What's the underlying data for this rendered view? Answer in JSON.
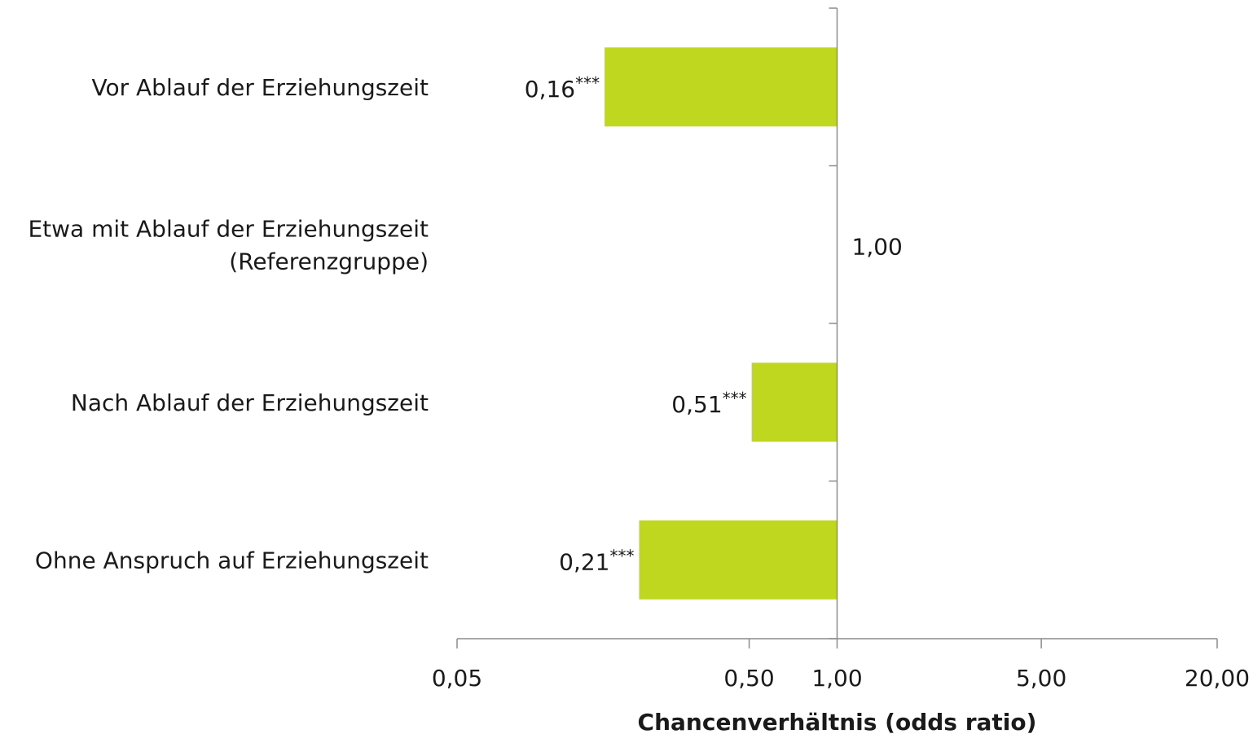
{
  "chart_data": {
    "type": "bar",
    "orientation": "horizontal",
    "xscale": "log",
    "baseline": 1.0,
    "xlim": [
      0.05,
      20.0
    ],
    "xlabel": "Chancenverhältnis (odds ratio)",
    "xticks": [
      0.05,
      0.5,
      1.0,
      5.0,
      20.0
    ],
    "xtick_labels": [
      "0,05",
      "0,50",
      "1,00",
      "5,00",
      "20,00"
    ],
    "categories": [
      [
        "Vor Ablauf der Erziehungszeit"
      ],
      [
        "Etwa mit Ablauf der Erziehungszeit",
        "(Referenzgruppe)"
      ],
      [
        "Nach Ablauf der Erziehungszeit"
      ],
      [
        "Ohne Anspruch auf Erziehungszeit"
      ]
    ],
    "values": [
      0.16,
      1.0,
      0.51,
      0.21
    ],
    "value_labels": [
      "0,16",
      "1,00",
      "0,51",
      "0,21"
    ],
    "significance": [
      "***",
      "",
      "***",
      "***"
    ],
    "bar_color": "#bfd71f",
    "grid": false,
    "legend": "none"
  }
}
